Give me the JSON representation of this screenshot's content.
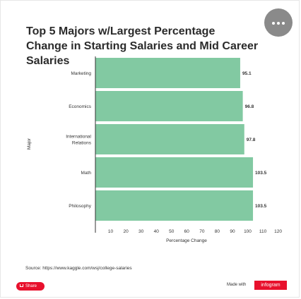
{
  "menu": {
    "icon": "more-dots-icon"
  },
  "chart_data": {
    "type": "bar",
    "orientation": "horizontal",
    "title": "Top 5 Majors w/Largest Percentage Change in Starting Salaries and Mid Career Salaries",
    "xlabel": "Percentage Change",
    "ylabel": "Major",
    "categories": [
      "Marketing",
      "Economics",
      "International Relations",
      "Math",
      "Philosophy"
    ],
    "values": [
      95.1,
      96.8,
      97.8,
      103.5,
      103.5
    ],
    "xticks": [
      10,
      20,
      30,
      40,
      50,
      60,
      70,
      80,
      90,
      100,
      110,
      120
    ],
    "xlim": [
      0,
      122
    ],
    "bar_color": "#82c9a2",
    "grid": false,
    "legend": "none"
  },
  "footer": {
    "source": "Source: https://www.kaggle.com/wsj/college-salaries",
    "share_label": "Share",
    "share_icon": "share-icon",
    "made_with": "Made with",
    "brand": "infogram",
    "accent_color": "#e8112d"
  }
}
